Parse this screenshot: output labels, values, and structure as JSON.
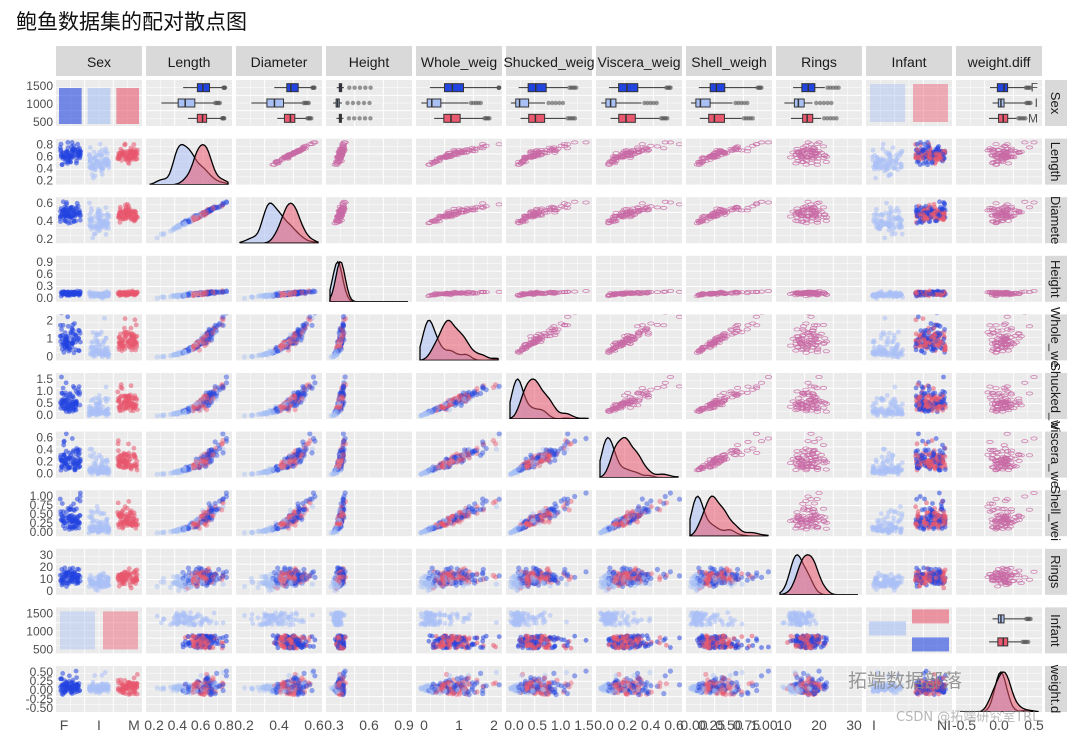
{
  "chart_data": {
    "type": "scatter-matrix",
    "title": "鲍鱼数据集的配对散点图",
    "variables": [
      "Sex",
      "Length",
      "Diameter",
      "Height",
      "Whole_weight",
      "Shucked_weight",
      "Viscera_weight",
      "Shell_weight",
      "Rings",
      "Infant",
      "weight.diff"
    ],
    "column_strips": [
      "Sex",
      "Length",
      "Diameter",
      "Height",
      "Whole_weig",
      "Shucked_weig",
      "Viscera_weig",
      "Shell_weigh",
      "Rings",
      "Infant",
      "weight.diff"
    ],
    "row_strips": [
      "Sex",
      "Length",
      "Diamete",
      "Height",
      "Whole_we",
      "Shucked_w",
      "Viscera_we",
      "Shell_wei",
      "Rings",
      "Infant",
      "weight.d"
    ],
    "groups": [
      "F",
      "I",
      "M"
    ],
    "group_colors": {
      "F": "#2244e0",
      "I": "#a9c0f5",
      "M": "#e8586e"
    },
    "sex_counts": {
      "F": 1307,
      "I": 1342,
      "M": 1528
    },
    "infant_levels": [
      "I",
      "NI"
    ],
    "ranges": {
      "Length": [
        0.075,
        0.815
      ],
      "Diameter": [
        0.055,
        0.65
      ],
      "Height": [
        0.0,
        1.13
      ],
      "Whole_weight": [
        0.0,
        2.83
      ],
      "Shucked_weight": [
        0.0,
        1.49
      ],
      "Viscera_weight": [
        0.0,
        0.76
      ],
      "Shell_weight": [
        0.0,
        1.0
      ],
      "Rings": [
        1,
        29
      ],
      "weight.diff": [
        -0.6,
        0.6
      ]
    },
    "x_tick_labels": [
      [
        "F",
        "I",
        "M"
      ],
      [
        "0.2",
        "0.4",
        "0.6",
        "0.8"
      ],
      [
        "0.2",
        "0.4",
        "0.6"
      ],
      [
        "0.3",
        "0.6",
        "0.9"
      ],
      [
        "0",
        "1",
        "2"
      ],
      [
        "0.0",
        "0.5",
        "1.0",
        "1.5"
      ],
      [
        "0.0",
        "0.2",
        "0.4",
        "0.6"
      ],
      [
        "0.00",
        "0.25",
        "0.50",
        "0.75",
        "1.00"
      ],
      [
        "10",
        "20",
        "30"
      ],
      [
        "I",
        "NI"
      ],
      [
        "-0.5",
        "0.0",
        "0.5"
      ]
    ],
    "y_tick_labels": [
      [
        "500",
        "1000",
        "1500"
      ],
      [
        "0.2",
        "0.4",
        "0.6",
        "0.8"
      ],
      [
        "0.2",
        "0.4",
        "0.6"
      ],
      [
        "0.0",
        "0.3",
        "0.6",
        "0.9"
      ],
      [
        "0",
        "1",
        "2"
      ],
      [
        "0.0",
        "0.5",
        "1.0",
        "1.5"
      ],
      [
        "0.0",
        "0.2",
        "0.4",
        "0.6"
      ],
      [
        "0.00",
        "0.25",
        "0.50",
        "0.75",
        "1.00"
      ],
      [
        "0",
        "10",
        "20",
        "30"
      ],
      [
        "500",
        "1000",
        "1500"
      ],
      [
        "-0.50",
        "-0.25",
        "0.00",
        "0.25",
        "0.50"
      ]
    ],
    "sex_strip_levels": [
      "F",
      "I",
      "M"
    ],
    "infant_strip_levels": [
      "I",
      "NI"
    ],
    "grid": true,
    "legend": "none"
  },
  "watermark": {
    "text": "拓端数据部落",
    "sub": "CSDN @拓端研究室TRL"
  }
}
